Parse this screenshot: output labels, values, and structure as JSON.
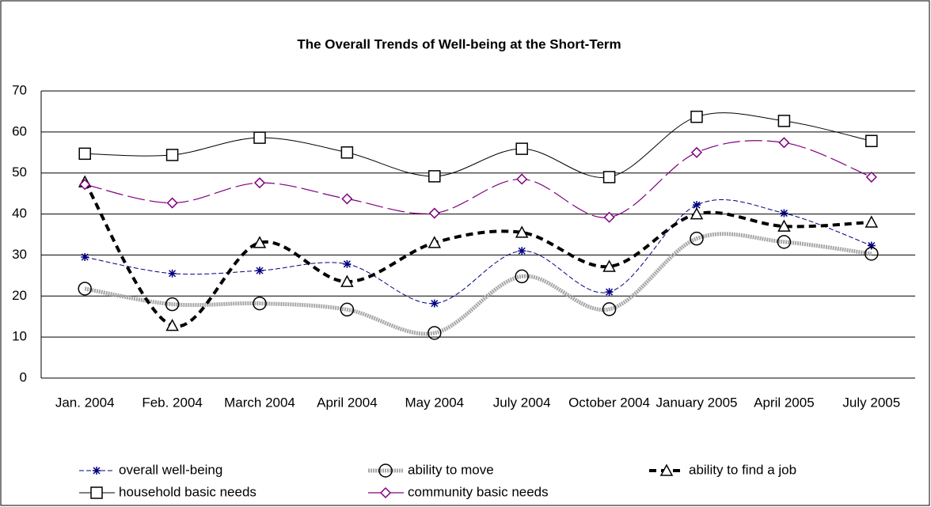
{
  "chart_data": {
    "type": "line",
    "title": "The Overall Trends of Well-being at the Short-Term",
    "categories": [
      "Jan. 2004",
      "Feb. 2004",
      "March 2004",
      "April 2004",
      "May 2004",
      "July 2004",
      "October 2004",
      "January 2005",
      "April 2005",
      "July 2005"
    ],
    "series": [
      {
        "name": "overall well-being",
        "color": "#000080",
        "marker": "star",
        "values": [
          29.5,
          25.5,
          26.2,
          27.8,
          18.2,
          31,
          21,
          42.2,
          40.2,
          32.3
        ]
      },
      {
        "name": "ability to move",
        "color": "#a6a6a6",
        "marker": "circle",
        "values": [
          21.8,
          18,
          18.2,
          16.7,
          11,
          24.8,
          16.8,
          34,
          33.2,
          30.3
        ]
      },
      {
        "name": "ability to find a job",
        "color": "#000000",
        "marker": "triangle",
        "values": [
          47.8,
          12.8,
          33,
          23.5,
          33,
          35.5,
          27.2,
          40,
          37,
          38
        ]
      },
      {
        "name": "household basic needs",
        "color": "#000000",
        "marker": "square",
        "values": [
          54.7,
          54.4,
          58.6,
          55,
          49.2,
          55.9,
          49,
          63.7,
          62.7,
          57.8
        ]
      },
      {
        "name": "community basic needs",
        "color": "#800080",
        "marker": "diamond",
        "values": [
          47.2,
          42.7,
          47.6,
          43.7,
          40.2,
          48.5,
          39.2,
          55,
          57.4,
          49
        ]
      }
    ],
    "ylim": [
      0,
      70
    ],
    "yticks": [
      0,
      10,
      20,
      30,
      40,
      50,
      60,
      70
    ],
    "grid": true,
    "smooth": true,
    "legend": "bottom"
  }
}
